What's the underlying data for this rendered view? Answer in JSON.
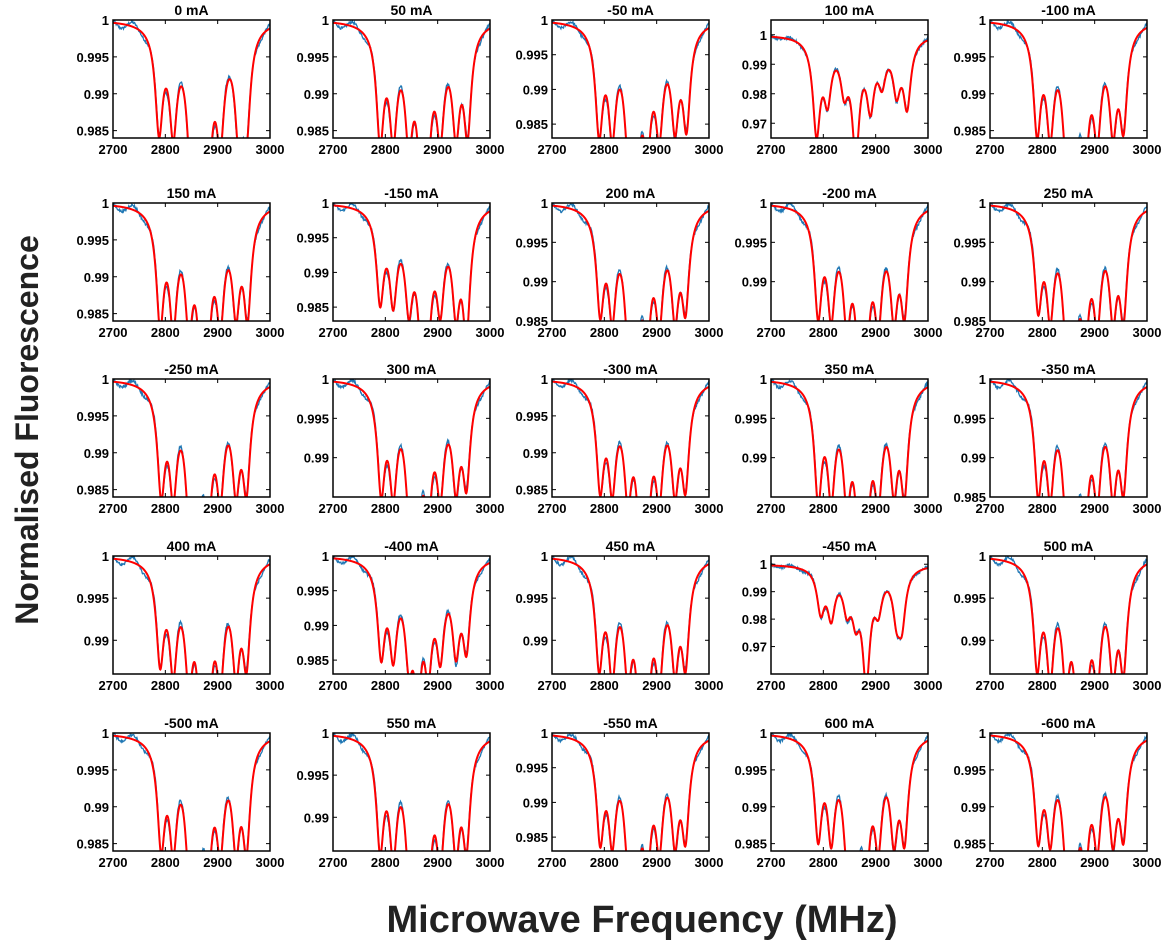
{
  "figure": {
    "ylabel": "Normalised Fluorescence",
    "xlabel": "Microwave Frequency (MHz)"
  },
  "colors": {
    "measured": "#1f77b4",
    "fit": "#ff0000",
    "axes": "#000000"
  },
  "chart_data": {
    "type": "line",
    "layout": {
      "rows": 5,
      "cols": 5
    },
    "x_ticks": [
      "2700",
      "2800",
      "2900",
      "3000"
    ],
    "xlim": [
      2700,
      3000
    ],
    "series_styles": [
      {
        "role": "measured",
        "color": "#1f77b4"
      },
      {
        "role": "fit",
        "color": "#ff0000"
      }
    ],
    "panels": [
      {
        "title": "0 mA",
        "ylim": [
          0.984,
          1.0
        ],
        "yticks": [
          "0.985",
          "0.99",
          "0.995",
          "1"
        ],
        "dip_centers": [
          2788,
          2815,
          2848,
          2862,
          2882,
          2905,
          2940,
          2955
        ],
        "dip_depths": [
          0.0135,
          0.0125,
          0.0125,
          0.016,
          0.0155,
          0.0125,
          0.0125,
          0.013
        ]
      },
      {
        "title": "50 mA",
        "ylim": [
          0.984,
          1.0
        ],
        "yticks": [
          "0.985",
          "0.99",
          "0.995",
          "1"
        ],
        "dip_centers": [
          2790,
          2815,
          2845,
          2868,
          2880,
          2905,
          2935,
          2957
        ],
        "dip_depths": [
          0.0145,
          0.013,
          0.0125,
          0.0135,
          0.0135,
          0.012,
          0.0125,
          0.0135
        ]
      },
      {
        "title": "-50 mA",
        "ylim": [
          0.983,
          1.0
        ],
        "yticks": [
          "0.985",
          "0.99",
          "0.995",
          "1"
        ],
        "dip_centers": [
          2790,
          2815,
          2845,
          2862,
          2882,
          2905,
          2935,
          2957
        ],
        "dip_depths": [
          0.0145,
          0.0135,
          0.0125,
          0.0155,
          0.0135,
          0.0125,
          0.0125,
          0.0135
        ]
      },
      {
        "title": "100 mA",
        "ylim": [
          0.965,
          1.005
        ],
        "yticks": [
          "0.97",
          "0.98",
          "0.99",
          "1"
        ],
        "dip_centers": [
          2787,
          2808,
          2840,
          2862,
          2890,
          2912,
          2940,
          2960
        ],
        "dip_depths": [
          0.031,
          0.018,
          0.014,
          0.035,
          0.02,
          0.012,
          0.016,
          0.022
        ]
      },
      {
        "title": "-100 mA",
        "ylim": [
          0.984,
          1.0
        ],
        "yticks": [
          "0.985",
          "0.99",
          "0.995",
          "1"
        ],
        "dip_centers": [
          2790,
          2815,
          2845,
          2862,
          2882,
          2905,
          2935,
          2955
        ],
        "dip_depths": [
          0.0135,
          0.0125,
          0.012,
          0.0145,
          0.0135,
          0.012,
          0.012,
          0.0125
        ]
      },
      {
        "title": "150 mA",
        "ylim": [
          0.984,
          1.0
        ],
        "yticks": [
          "0.985",
          "0.99",
          "0.995",
          "1"
        ],
        "dip_centers": [
          2790,
          2815,
          2845,
          2868,
          2880,
          2905,
          2935,
          2957
        ],
        "dip_depths": [
          0.0145,
          0.0135,
          0.0125,
          0.0135,
          0.014,
          0.0125,
          0.012,
          0.0135
        ]
      },
      {
        "title": "-150 mA",
        "ylim": [
          0.983,
          1.0
        ],
        "yticks": [
          "0.985",
          "0.99",
          "0.995",
          "1"
        ],
        "dip_centers": [
          2790,
          2815,
          2845,
          2868,
          2882,
          2905,
          2935,
          2955
        ],
        "dip_depths": [
          0.0125,
          0.0115,
          0.0115,
          0.013,
          0.0125,
          0.0115,
          0.0125,
          0.0165
        ]
      },
      {
        "title": "200 mA",
        "ylim": [
          0.985,
          1.0
        ],
        "yticks": [
          "0.985",
          "0.99",
          "0.995",
          "1"
        ],
        "dip_centers": [
          2792,
          2815,
          2845,
          2862,
          2882,
          2905,
          2935,
          2955
        ],
        "dip_depths": [
          0.012,
          0.0115,
          0.0115,
          0.0135,
          0.012,
          0.0115,
          0.0115,
          0.0115
        ]
      },
      {
        "title": "-200 mA",
        "ylim": [
          0.985,
          1.0
        ],
        "yticks": [
          "0.99",
          "0.995",
          "1"
        ],
        "dip_centers": [
          2790,
          2815,
          2845,
          2868,
          2882,
          2905,
          2935,
          2955
        ],
        "dip_depths": [
          0.0125,
          0.0115,
          0.0115,
          0.013,
          0.0125,
          0.0115,
          0.0115,
          0.012
        ]
      },
      {
        "title": "250 mA",
        "ylim": [
          0.985,
          1.0
        ],
        "yticks": [
          "0.985",
          "0.99",
          "0.995",
          "1"
        ],
        "dip_centers": [
          2792,
          2815,
          2845,
          2862,
          2882,
          2905,
          2935,
          2955
        ],
        "dip_depths": [
          0.0115,
          0.0115,
          0.0115,
          0.0125,
          0.0125,
          0.0115,
          0.0115,
          0.0125
        ]
      },
      {
        "title": "-250 mA",
        "ylim": [
          0.984,
          1.0
        ],
        "yticks": [
          "0.985",
          "0.99",
          "0.995",
          "1"
        ],
        "dip_centers": [
          2792,
          2815,
          2845,
          2862,
          2882,
          2905,
          2935,
          2955
        ],
        "dip_depths": [
          0.0135,
          0.0125,
          0.0125,
          0.0145,
          0.0135,
          0.012,
          0.012,
          0.013
        ]
      },
      {
        "title": "300 mA",
        "ylim": [
          0.985,
          1.0
        ],
        "yticks": [
          "0.99",
          "0.995",
          "1"
        ],
        "dip_centers": [
          2792,
          2815,
          2845,
          2862,
          2882,
          2905,
          2935,
          2955
        ],
        "dip_depths": [
          0.0125,
          0.0115,
          0.011,
          0.0135,
          0.012,
          0.011,
          0.011,
          0.0115
        ]
      },
      {
        "title": "-300 mA",
        "ylim": [
          0.984,
          1.0
        ],
        "yticks": [
          "0.985",
          "0.99",
          "0.995",
          "1"
        ],
        "dip_centers": [
          2792,
          2815,
          2845,
          2868,
          2882,
          2905,
          2935,
          2955
        ],
        "dip_depths": [
          0.013,
          0.012,
          0.012,
          0.0135,
          0.0135,
          0.012,
          0.012,
          0.0125
        ]
      },
      {
        "title": "350 mA",
        "ylim": [
          0.985,
          1.0
        ],
        "yticks": [
          "0.99",
          "0.995",
          "1"
        ],
        "dip_centers": [
          2790,
          2815,
          2845,
          2868,
          2882,
          2905,
          2935,
          2955
        ],
        "dip_depths": [
          0.0135,
          0.012,
          0.0115,
          0.0135,
          0.0135,
          0.0115,
          0.011,
          0.0125
        ]
      },
      {
        "title": "-350 mA",
        "ylim": [
          0.985,
          1.0
        ],
        "yticks": [
          "0.985",
          "0.99",
          "0.995",
          "1"
        ],
        "dip_centers": [
          2792,
          2815,
          2845,
          2862,
          2882,
          2905,
          2935,
          2955
        ],
        "dip_depths": [
          0.0125,
          0.0115,
          0.0115,
          0.0135,
          0.0125,
          0.0115,
          0.0115,
          0.012
        ]
      },
      {
        "title": "400 mA",
        "ylim": [
          0.986,
          1.0
        ],
        "yticks": [
          "0.99",
          "0.995",
          "1"
        ],
        "dip_centers": [
          2790,
          2815,
          2845,
          2868,
          2882,
          2905,
          2935,
          2955
        ],
        "dip_depths": [
          0.011,
          0.011,
          0.011,
          0.013,
          0.013,
          0.011,
          0.011,
          0.011
        ]
      },
      {
        "title": "-400 mA",
        "ylim": [
          0.983,
          1.0
        ],
        "yticks": [
          "0.985",
          "0.99",
          "0.995",
          "1"
        ],
        "dip_centers": [
          2792,
          2815,
          2845,
          2862,
          2882,
          2905,
          2935,
          2955
        ],
        "dip_depths": [
          0.0125,
          0.0115,
          0.011,
          0.0145,
          0.012,
          0.011,
          0.011,
          0.0115
        ]
      },
      {
        "title": "450 mA",
        "ylim": [
          0.986,
          1.0
        ],
        "yticks": [
          "0.99",
          "0.995",
          "1"
        ],
        "dip_centers": [
          2790,
          2815,
          2845,
          2868,
          2882,
          2905,
          2935,
          2955
        ],
        "dip_depths": [
          0.0115,
          0.0115,
          0.0105,
          0.013,
          0.012,
          0.011,
          0.0105,
          0.011
        ]
      },
      {
        "title": "-450 mA",
        "ylim": [
          0.96,
          1.003
        ],
        "yticks": [
          "0.97",
          "0.98",
          "0.99",
          "1"
        ],
        "dip_centers": [
          2795,
          2815,
          2845,
          2862,
          2882,
          2905,
          2940,
          2950
        ],
        "dip_depths": [
          0.015,
          0.016,
          0.012,
          0.014,
          0.038,
          0.012,
          0.015,
          0.018
        ]
      },
      {
        "title": "500 mA",
        "ylim": [
          0.986,
          1.0
        ],
        "yticks": [
          "0.99",
          "0.995",
          "1"
        ],
        "dip_centers": [
          2790,
          2815,
          2845,
          2868,
          2882,
          2905,
          2935,
          2955
        ],
        "dip_depths": [
          0.0115,
          0.0115,
          0.011,
          0.013,
          0.0125,
          0.011,
          0.011,
          0.0115
        ]
      },
      {
        "title": "-500 mA",
        "ylim": [
          0.984,
          1.0
        ],
        "yticks": [
          "0.985",
          "0.99",
          "0.995",
          "1"
        ],
        "dip_centers": [
          2792,
          2815,
          2845,
          2862,
          2882,
          2905,
          2935,
          2955
        ],
        "dip_depths": [
          0.0135,
          0.0125,
          0.0125,
          0.015,
          0.013,
          0.012,
          0.0125,
          0.0135
        ]
      },
      {
        "title": "550 mA",
        "ylim": [
          0.986,
          1.0
        ],
        "yticks": [
          "0.99",
          "0.995",
          "1"
        ],
        "dip_centers": [
          2790,
          2815,
          2845,
          2862,
          2882,
          2905,
          2935,
          2955
        ],
        "dip_depths": [
          0.012,
          0.0115,
          0.011,
          0.0125,
          0.0125,
          0.0115,
          0.011,
          0.0115
        ]
      },
      {
        "title": "-550 mA",
        "ylim": [
          0.983,
          1.0
        ],
        "yticks": [
          "0.985",
          "0.99",
          "0.995",
          "1"
        ],
        "dip_centers": [
          2792,
          2815,
          2845,
          2862,
          2882,
          2905,
          2935,
          2955
        ],
        "dip_depths": [
          0.0135,
          0.0125,
          0.0125,
          0.015,
          0.014,
          0.0125,
          0.0125,
          0.013
        ]
      },
      {
        "title": "600 mA",
        "ylim": [
          0.984,
          1.0
        ],
        "yticks": [
          "0.985",
          "0.99",
          "0.995",
          "1"
        ],
        "dip_centers": [
          2790,
          2815,
          2845,
          2862,
          2882,
          2905,
          2935,
          2955
        ],
        "dip_depths": [
          0.0125,
          0.0115,
          0.0115,
          0.0145,
          0.0135,
          0.0115,
          0.0115,
          0.0125
        ]
      },
      {
        "title": "-600 mA",
        "ylim": [
          0.984,
          1.0
        ],
        "yticks": [
          "0.985",
          "0.99",
          "0.995",
          "1"
        ],
        "dip_centers": [
          2792,
          2815,
          2845,
          2862,
          2882,
          2905,
          2935,
          2955
        ],
        "dip_depths": [
          0.0125,
          0.0115,
          0.0115,
          0.014,
          0.013,
          0.0115,
          0.0115,
          0.012
        ]
      }
    ]
  }
}
